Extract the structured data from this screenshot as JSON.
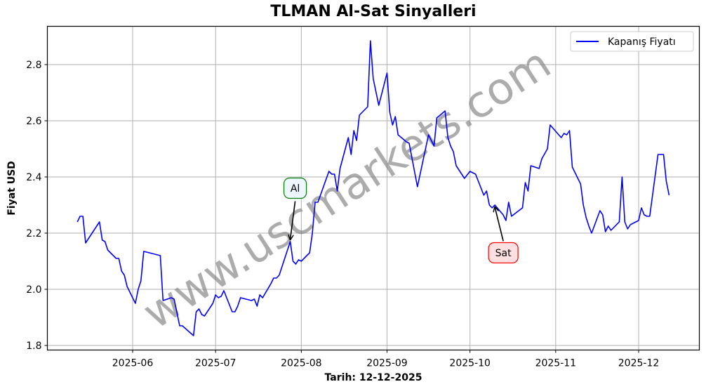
{
  "chart_data": {
    "type": "line",
    "title": "TLMAN Al-Sat Sinyalleri",
    "xlabel": "Tarih: 12-12-2025",
    "ylabel": "Fiyat USD",
    "ylim": [
      1.785,
      2.935
    ],
    "yticks": [
      1.8,
      2.0,
      2.2,
      2.4,
      2.6,
      2.8
    ],
    "ytick_labels": [
      "1.8",
      "2.0",
      "2.2",
      "2.4",
      "2.6",
      "2.8"
    ],
    "xticks": [
      "2025-06-01",
      "2025-07-01",
      "2025-08-01",
      "2025-09-01",
      "2025-10-01",
      "2025-11-01",
      "2025-12-01"
    ],
    "xtick_labels": [
      "2025-06",
      "2025-07",
      "2025-08",
      "2025-09",
      "2025-10",
      "2025-11",
      "2025-12"
    ],
    "grid": true,
    "legend_position": "upper right",
    "series": [
      {
        "name": "Kapanış Fiyatı",
        "color": "#0000ff",
        "x": [
          "2025-05-12",
          "2025-05-13",
          "2025-05-14",
          "2025-05-15",
          "2025-05-20",
          "2025-05-21",
          "2025-05-22",
          "2025-05-23",
          "2025-05-26",
          "2025-05-27",
          "2025-05-28",
          "2025-05-29",
          "2025-05-30",
          "2025-06-02",
          "2025-06-03",
          "2025-06-04",
          "2025-06-05",
          "2025-06-11",
          "2025-06-12",
          "2025-06-15",
          "2025-06-16",
          "2025-06-18",
          "2025-06-19",
          "2025-06-23",
          "2025-06-24",
          "2025-06-25",
          "2025-06-26",
          "2025-06-27",
          "2025-06-30",
          "2025-07-01",
          "2025-07-02",
          "2025-07-03",
          "2025-07-04",
          "2025-07-07",
          "2025-07-08",
          "2025-07-09",
          "2025-07-10",
          "2025-07-14",
          "2025-07-15",
          "2025-07-16",
          "2025-07-17",
          "2025-07-18",
          "2025-07-21",
          "2025-07-22",
          "2025-07-23",
          "2025-07-24",
          "2025-07-28",
          "2025-07-29",
          "2025-07-30",
          "2025-07-31",
          "2025-08-01",
          "2025-08-04",
          "2025-08-05",
          "2025-08-06",
          "2025-08-07",
          "2025-08-11",
          "2025-08-12",
          "2025-08-13",
          "2025-08-14",
          "2025-08-15",
          "2025-08-18",
          "2025-08-19",
          "2025-08-20",
          "2025-08-21",
          "2025-08-22",
          "2025-08-25",
          "2025-08-26",
          "2025-08-27",
          "2025-08-29",
          "2025-09-01",
          "2025-09-02",
          "2025-09-03",
          "2025-09-04",
          "2025-09-05",
          "2025-09-08",
          "2025-09-09",
          "2025-09-12",
          "2025-09-16",
          "2025-09-18",
          "2025-09-19",
          "2025-09-22",
          "2025-09-23",
          "2025-09-24",
          "2025-09-25",
          "2025-09-26",
          "2025-09-29",
          "2025-10-01",
          "2025-10-03",
          "2025-10-06",
          "2025-10-07",
          "2025-10-08",
          "2025-10-09",
          "2025-10-10",
          "2025-10-13",
          "2025-10-14",
          "2025-10-15",
          "2025-10-16",
          "2025-10-20",
          "2025-10-21",
          "2025-10-22",
          "2025-10-23",
          "2025-10-26",
          "2025-10-27",
          "2025-10-29",
          "2025-10-30",
          "2025-11-03",
          "2025-11-04",
          "2025-11-05",
          "2025-11-06",
          "2025-11-07",
          "2025-11-10",
          "2025-11-11",
          "2025-11-12",
          "2025-11-13",
          "2025-11-14",
          "2025-11-17",
          "2025-11-18",
          "2025-11-19",
          "2025-11-20",
          "2025-11-21",
          "2025-11-24",
          "2025-11-25",
          "2025-11-26",
          "2025-11-27",
          "2025-11-28",
          "2025-12-01",
          "2025-12-02",
          "2025-12-03",
          "2025-12-04",
          "2025-12-05",
          "2025-12-08",
          "2025-12-09",
          "2025-12-10",
          "2025-12-11",
          "2025-12-12"
        ],
        "values": [
          2.24,
          2.26,
          2.26,
          2.165,
          2.24,
          2.175,
          2.17,
          2.14,
          2.11,
          2.11,
          2.065,
          2.05,
          2.01,
          1.95,
          2.0,
          2.03,
          2.135,
          2.12,
          1.96,
          1.97,
          1.965,
          1.87,
          1.87,
          1.835,
          1.92,
          1.93,
          1.91,
          1.905,
          1.95,
          1.98,
          1.97,
          1.975,
          1.995,
          1.92,
          1.92,
          1.94,
          1.97,
          1.96,
          1.965,
          1.94,
          1.98,
          1.97,
          2.02,
          2.04,
          2.04,
          2.05,
          2.17,
          2.1,
          2.09,
          2.105,
          2.1,
          2.13,
          2.2,
          2.31,
          2.31,
          2.42,
          2.41,
          2.41,
          2.35,
          2.43,
          2.54,
          2.48,
          2.565,
          2.53,
          2.62,
          2.65,
          2.885,
          2.75,
          2.655,
          2.77,
          2.63,
          2.585,
          2.615,
          2.55,
          2.525,
          2.52,
          2.365,
          2.55,
          2.51,
          2.61,
          2.635,
          2.54,
          2.51,
          2.49,
          2.44,
          2.395,
          2.42,
          2.41,
          2.335,
          2.35,
          2.3,
          2.29,
          2.3,
          2.265,
          2.245,
          2.31,
          2.26,
          2.29,
          2.38,
          2.35,
          2.44,
          2.43,
          2.465,
          2.5,
          2.585,
          2.54,
          2.555,
          2.55,
          2.565,
          2.435,
          2.375,
          2.3,
          2.255,
          2.225,
          2.2,
          2.28,
          2.265,
          2.205,
          2.225,
          2.21,
          2.24,
          2.4,
          2.24,
          2.215,
          2.23,
          2.245,
          2.29,
          2.265,
          2.26,
          2.26,
          2.48,
          2.48,
          2.48,
          2.385,
          2.335
        ]
      }
    ],
    "annotations": [
      {
        "text": "Al",
        "type": "buy",
        "x": "2025-07-28",
        "y": 2.17,
        "box_fill": "#eef6ff",
        "box_edge": "#008000"
      },
      {
        "text": "Sat",
        "type": "sell",
        "x": "2025-10-10",
        "y": 2.3,
        "box_fill": "#ffe0e0",
        "box_edge": "#ff0000"
      }
    ],
    "watermark": "www.uscmarkets.com"
  }
}
